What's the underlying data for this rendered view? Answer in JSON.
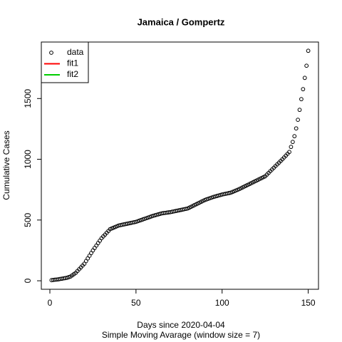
{
  "chart_data": {
    "type": "scatter",
    "title": "Jamaica / Gompertz",
    "x_label": "Days since 2020-04-04",
    "subtitle": "Simple Moving Avarage (window size = 7)",
    "y_label": "Cumulative Cases",
    "xlim": [
      -4.96,
      155.96
    ],
    "xticks": [
      0,
      50,
      100,
      150
    ],
    "ylim": [
      -70,
      1965
    ],
    "yticks": [
      0,
      500,
      1000,
      1500
    ],
    "legend": [
      {
        "label": "data",
        "color": "#000000",
        "symbol": "point"
      },
      {
        "label": "fit1",
        "color": "#ff0000",
        "symbol": "line"
      },
      {
        "label": "fit2",
        "color": "#00cd00",
        "symbol": "line"
      }
    ],
    "legend_position": "top-left",
    "series": [
      {
        "name": "data",
        "color": "#000000",
        "x": [
          1,
          2,
          3,
          4,
          5,
          6,
          7,
          8,
          9,
          10,
          11,
          12,
          13,
          14,
          15,
          16,
          17,
          18,
          19,
          20,
          21,
          22,
          23,
          24,
          25,
          26,
          27,
          28,
          29,
          30,
          31,
          32,
          33,
          34,
          35,
          36,
          37,
          38,
          39,
          40,
          41,
          42,
          43,
          44,
          45,
          46,
          47,
          48,
          49,
          50,
          51,
          52,
          53,
          54,
          55,
          56,
          57,
          58,
          59,
          60,
          61,
          62,
          63,
          64,
          65,
          66,
          67,
          68,
          69,
          70,
          71,
          72,
          73,
          74,
          75,
          76,
          77,
          78,
          79,
          80,
          81,
          82,
          83,
          84,
          85,
          86,
          87,
          88,
          89,
          90,
          91,
          92,
          93,
          94,
          95,
          96,
          97,
          98,
          99,
          100,
          101,
          102,
          103,
          104,
          105,
          106,
          107,
          108,
          109,
          110,
          111,
          112,
          113,
          114,
          115,
          116,
          117,
          118,
          119,
          120,
          121,
          122,
          123,
          124,
          125,
          126,
          127,
          128,
          129,
          130,
          131,
          132,
          133,
          134,
          135,
          136,
          137,
          138,
          139,
          140,
          141,
          142,
          143,
          144,
          145,
          146,
          147,
          148,
          149,
          150
        ],
        "values": [
          5,
          7,
          9,
          10,
          12,
          15,
          17,
          20,
          22,
          25,
          30,
          35,
          45,
          55,
          65,
          80,
          95,
          110,
          125,
          140,
          162,
          184,
          206,
          228,
          250,
          270,
          290,
          310,
          330,
          350,
          365,
          380,
          395,
          410,
          425,
          431,
          437,
          443,
          449,
          455,
          458,
          461,
          464,
          467,
          470,
          473,
          476,
          479,
          482,
          485,
          490,
          495,
          500,
          505,
          510,
          515,
          520,
          525,
          530,
          535,
          539,
          543,
          547,
          551,
          555,
          557,
          559,
          561,
          563,
          565,
          568,
          571,
          574,
          577,
          580,
          583,
          586,
          589,
          592,
          595,
          602,
          609,
          616,
          623,
          630,
          637,
          644,
          651,
          658,
          665,
          670,
          675,
          680,
          685,
          690,
          694,
          698,
          702,
          706,
          710,
          713,
          716,
          719,
          722,
          725,
          731,
          737,
          743,
          749,
          755,
          762,
          769,
          776,
          783,
          790,
          797,
          804,
          811,
          818,
          825,
          832,
          839,
          846,
          853,
          860,
          874,
          888,
          902,
          916,
          930,
          944,
          958,
          972,
          986,
          1000,
          1015,
          1030,
          1045,
          1060,
          1102,
          1143,
          1190,
          1254,
          1325,
          1407,
          1495,
          1577,
          1670,
          1770,
          1893
        ]
      }
    ]
  }
}
